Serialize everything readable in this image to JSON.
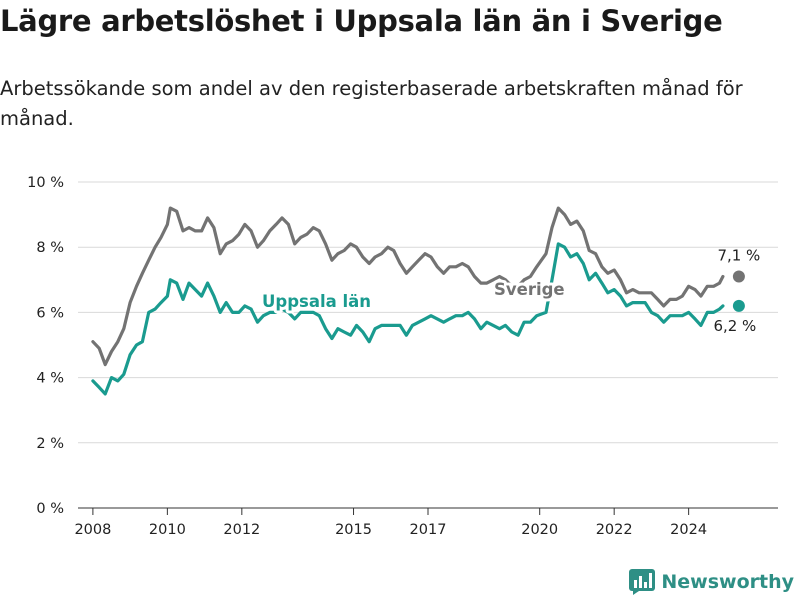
{
  "header": {
    "title": "Lägre arbetslöshet i Uppsala län än i Sverige",
    "subtitle": "Arbetssökande som andel av den registerbaserade arbetskraften månad för månad."
  },
  "brand": {
    "name": "Newsworthy",
    "color": "#2e8f85",
    "icon": "bar-chart-logo-icon"
  },
  "chart_data": {
    "type": "line",
    "title": "Lägre arbetslöshet i Uppsala län än i Sverige",
    "subtitle": "Arbetssökande som andel av den registerbaserade arbetskraften månad för månad.",
    "xlabel": "",
    "ylabel": "",
    "x_ticks": [
      2008,
      2010,
      2012,
      2015,
      2017,
      2020,
      2022,
      2024
    ],
    "y_ticks": [
      0,
      2,
      4,
      6,
      8,
      10
    ],
    "y_tick_labels": [
      "0 %",
      "2 %",
      "4 %",
      "6 %",
      "8 %",
      "10 %"
    ],
    "ylim": [
      0,
      10
    ],
    "xlim": [
      2007.6,
      2026.4
    ],
    "grid": true,
    "legend": "direct-labels",
    "series": [
      {
        "name": "Sverige",
        "color": "#737373",
        "end_label": "7,1 %",
        "points": [
          [
            2008.0,
            5.1
          ],
          [
            2008.17,
            4.9
          ],
          [
            2008.33,
            4.4
          ],
          [
            2008.5,
            4.8
          ],
          [
            2008.67,
            5.1
          ],
          [
            2008.83,
            5.5
          ],
          [
            2009.0,
            6.3
          ],
          [
            2009.17,
            6.8
          ],
          [
            2009.33,
            7.2
          ],
          [
            2009.5,
            7.6
          ],
          [
            2009.67,
            8.0
          ],
          [
            2009.83,
            8.3
          ],
          [
            2010.0,
            8.7
          ],
          [
            2010.08,
            9.2
          ],
          [
            2010.25,
            9.1
          ],
          [
            2010.42,
            8.5
          ],
          [
            2010.58,
            8.6
          ],
          [
            2010.75,
            8.5
          ],
          [
            2010.92,
            8.5
          ],
          [
            2011.08,
            8.9
          ],
          [
            2011.25,
            8.6
          ],
          [
            2011.42,
            7.8
          ],
          [
            2011.58,
            8.1
          ],
          [
            2011.75,
            8.2
          ],
          [
            2011.92,
            8.4
          ],
          [
            2012.08,
            8.7
          ],
          [
            2012.25,
            8.5
          ],
          [
            2012.42,
            8.0
          ],
          [
            2012.58,
            8.2
          ],
          [
            2012.75,
            8.5
          ],
          [
            2012.92,
            8.7
          ],
          [
            2013.08,
            8.9
          ],
          [
            2013.25,
            8.7
          ],
          [
            2013.42,
            8.1
          ],
          [
            2013.58,
            8.3
          ],
          [
            2013.75,
            8.4
          ],
          [
            2013.92,
            8.6
          ],
          [
            2014.08,
            8.5
          ],
          [
            2014.25,
            8.1
          ],
          [
            2014.42,
            7.6
          ],
          [
            2014.58,
            7.8
          ],
          [
            2014.75,
            7.9
          ],
          [
            2014.92,
            8.1
          ],
          [
            2015.08,
            8.0
          ],
          [
            2015.25,
            7.7
          ],
          [
            2015.42,
            7.5
          ],
          [
            2015.58,
            7.7
          ],
          [
            2015.75,
            7.8
          ],
          [
            2015.92,
            8.0
          ],
          [
            2016.08,
            7.9
          ],
          [
            2016.25,
            7.5
          ],
          [
            2016.42,
            7.2
          ],
          [
            2016.58,
            7.4
          ],
          [
            2016.75,
            7.6
          ],
          [
            2016.92,
            7.8
          ],
          [
            2017.08,
            7.7
          ],
          [
            2017.25,
            7.4
          ],
          [
            2017.42,
            7.2
          ],
          [
            2017.58,
            7.4
          ],
          [
            2017.75,
            7.4
          ],
          [
            2017.92,
            7.5
          ],
          [
            2018.08,
            7.4
          ],
          [
            2018.25,
            7.1
          ],
          [
            2018.42,
            6.9
          ],
          [
            2018.58,
            6.9
          ],
          [
            2018.75,
            7.0
          ],
          [
            2018.92,
            7.1
          ],
          [
            2019.08,
            7.0
          ],
          [
            2019.25,
            6.8
          ],
          [
            2019.42,
            6.8
          ],
          [
            2019.58,
            7.0
          ],
          [
            2019.75,
            7.1
          ],
          [
            2019.92,
            7.4
          ],
          [
            2020.17,
            7.8
          ],
          [
            2020.33,
            8.6
          ],
          [
            2020.5,
            9.2
          ],
          [
            2020.67,
            9.0
          ],
          [
            2020.83,
            8.7
          ],
          [
            2021.0,
            8.8
          ],
          [
            2021.17,
            8.5
          ],
          [
            2021.33,
            7.9
          ],
          [
            2021.5,
            7.8
          ],
          [
            2021.67,
            7.4
          ],
          [
            2021.83,
            7.2
          ],
          [
            2022.0,
            7.3
          ],
          [
            2022.17,
            7.0
          ],
          [
            2022.33,
            6.6
          ],
          [
            2022.5,
            6.7
          ],
          [
            2022.67,
            6.6
          ],
          [
            2022.83,
            6.6
          ],
          [
            2023.0,
            6.6
          ],
          [
            2023.17,
            6.4
          ],
          [
            2023.33,
            6.2
          ],
          [
            2023.5,
            6.4
          ],
          [
            2023.67,
            6.4
          ],
          [
            2023.83,
            6.5
          ],
          [
            2024.0,
            6.8
          ],
          [
            2024.17,
            6.7
          ],
          [
            2024.33,
            6.5
          ],
          [
            2024.5,
            6.8
          ],
          [
            2024.67,
            6.8
          ],
          [
            2024.83,
            6.9
          ],
          [
            2024.92,
            7.1
          ]
        ]
      },
      {
        "name": "Uppsala län",
        "color": "#1a9b8f",
        "end_label": "6,2 %",
        "points": [
          [
            2008.0,
            3.9
          ],
          [
            2008.17,
            3.7
          ],
          [
            2008.33,
            3.5
          ],
          [
            2008.5,
            4.0
          ],
          [
            2008.67,
            3.9
          ],
          [
            2008.83,
            4.1
          ],
          [
            2009.0,
            4.7
          ],
          [
            2009.17,
            5.0
          ],
          [
            2009.33,
            5.1
          ],
          [
            2009.5,
            6.0
          ],
          [
            2009.67,
            6.1
          ],
          [
            2009.83,
            6.3
          ],
          [
            2010.0,
            6.5
          ],
          [
            2010.08,
            7.0
          ],
          [
            2010.25,
            6.9
          ],
          [
            2010.42,
            6.4
          ],
          [
            2010.58,
            6.9
          ],
          [
            2010.75,
            6.7
          ],
          [
            2010.92,
            6.5
          ],
          [
            2011.08,
            6.9
          ],
          [
            2011.25,
            6.5
          ],
          [
            2011.42,
            6.0
          ],
          [
            2011.58,
            6.3
          ],
          [
            2011.75,
            6.0
          ],
          [
            2011.92,
            6.0
          ],
          [
            2012.08,
            6.2
          ],
          [
            2012.25,
            6.1
          ],
          [
            2012.42,
            5.7
          ],
          [
            2012.58,
            5.9
          ],
          [
            2012.75,
            6.0
          ],
          [
            2012.92,
            6.0
          ],
          [
            2013.08,
            6.1
          ],
          [
            2013.25,
            6.0
          ],
          [
            2013.42,
            5.8
          ],
          [
            2013.58,
            6.0
          ],
          [
            2013.75,
            6.0
          ],
          [
            2013.92,
            6.0
          ],
          [
            2014.08,
            5.9
          ],
          [
            2014.25,
            5.5
          ],
          [
            2014.42,
            5.2
          ],
          [
            2014.58,
            5.5
          ],
          [
            2014.75,
            5.4
          ],
          [
            2014.92,
            5.3
          ],
          [
            2015.08,
            5.6
          ],
          [
            2015.25,
            5.4
          ],
          [
            2015.42,
            5.1
          ],
          [
            2015.58,
            5.5
          ],
          [
            2015.75,
            5.6
          ],
          [
            2015.92,
            5.6
          ],
          [
            2016.08,
            5.6
          ],
          [
            2016.25,
            5.6
          ],
          [
            2016.42,
            5.3
          ],
          [
            2016.58,
            5.6
          ],
          [
            2016.75,
            5.7
          ],
          [
            2016.92,
            5.8
          ],
          [
            2017.08,
            5.9
          ],
          [
            2017.25,
            5.8
          ],
          [
            2017.42,
            5.7
          ],
          [
            2017.58,
            5.8
          ],
          [
            2017.75,
            5.9
          ],
          [
            2017.92,
            5.9
          ],
          [
            2018.08,
            6.0
          ],
          [
            2018.25,
            5.8
          ],
          [
            2018.42,
            5.5
          ],
          [
            2018.58,
            5.7
          ],
          [
            2018.75,
            5.6
          ],
          [
            2018.92,
            5.5
          ],
          [
            2019.08,
            5.6
          ],
          [
            2019.25,
            5.4
          ],
          [
            2019.42,
            5.3
          ],
          [
            2019.58,
            5.7
          ],
          [
            2019.75,
            5.7
          ],
          [
            2019.92,
            5.9
          ],
          [
            2020.17,
            6.0
          ],
          [
            2020.33,
            7.0
          ],
          [
            2020.5,
            8.1
          ],
          [
            2020.67,
            8.0
          ],
          [
            2020.83,
            7.7
          ],
          [
            2021.0,
            7.8
          ],
          [
            2021.17,
            7.5
          ],
          [
            2021.33,
            7.0
          ],
          [
            2021.5,
            7.2
          ],
          [
            2021.67,
            6.9
          ],
          [
            2021.83,
            6.6
          ],
          [
            2022.0,
            6.7
          ],
          [
            2022.17,
            6.5
          ],
          [
            2022.33,
            6.2
          ],
          [
            2022.5,
            6.3
          ],
          [
            2022.67,
            6.3
          ],
          [
            2022.83,
            6.3
          ],
          [
            2023.0,
            6.0
          ],
          [
            2023.17,
            5.9
          ],
          [
            2023.33,
            5.7
          ],
          [
            2023.5,
            5.9
          ],
          [
            2023.67,
            5.9
          ],
          [
            2023.83,
            5.9
          ],
          [
            2024.0,
            6.0
          ],
          [
            2024.17,
            5.8
          ],
          [
            2024.33,
            5.6
          ],
          [
            2024.5,
            6.0
          ],
          [
            2024.67,
            6.0
          ],
          [
            2024.83,
            6.1
          ],
          [
            2024.92,
            6.2
          ]
        ]
      }
    ]
  }
}
